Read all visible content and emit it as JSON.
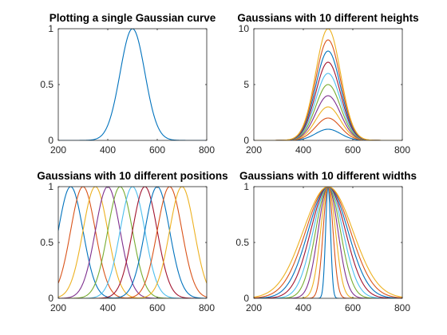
{
  "series_colors": [
    "#0072BD",
    "#D95319",
    "#EDB120",
    "#7E2F8E",
    "#77AC30",
    "#4DBEEE",
    "#A2142F",
    "#0072BD",
    "#D95319",
    "#EDB120"
  ],
  "chart_data": [
    {
      "type": "line",
      "title": "Plotting a single Gaussian curve",
      "xlim": [
        200,
        800
      ],
      "ylim": [
        0,
        1
      ],
      "xticks": [
        200,
        400,
        600,
        800
      ],
      "xtick_labels": [
        "200",
        "400",
        "600",
        "800"
      ],
      "yticks": [
        0,
        0.5,
        1
      ],
      "ytick_labels": [
        "0",
        "0.5",
        "1"
      ],
      "grid": false,
      "series": [
        {
          "center": 500,
          "sigma": 50,
          "height": 1
        }
      ]
    },
    {
      "type": "line",
      "title": "Gaussians with 10 different heights",
      "xlim": [
        200,
        800
      ],
      "ylim": [
        0,
        10
      ],
      "xticks": [
        200,
        400,
        600,
        800
      ],
      "xtick_labels": [
        "200",
        "400",
        "600",
        "800"
      ],
      "yticks": [
        0,
        5,
        10
      ],
      "ytick_labels": [
        "0",
        "5",
        "10"
      ],
      "grid": false,
      "series": [
        {
          "center": 500,
          "sigma": 50,
          "height": 1
        },
        {
          "center": 500,
          "sigma": 50,
          "height": 2
        },
        {
          "center": 500,
          "sigma": 50,
          "height": 3
        },
        {
          "center": 500,
          "sigma": 50,
          "height": 4
        },
        {
          "center": 500,
          "sigma": 50,
          "height": 5
        },
        {
          "center": 500,
          "sigma": 50,
          "height": 6
        },
        {
          "center": 500,
          "sigma": 50,
          "height": 7
        },
        {
          "center": 500,
          "sigma": 50,
          "height": 8
        },
        {
          "center": 500,
          "sigma": 50,
          "height": 9
        },
        {
          "center": 500,
          "sigma": 50,
          "height": 10
        }
      ]
    },
    {
      "type": "line",
      "title": "Gaussians with 10 different positions",
      "xlim": [
        200,
        800
      ],
      "ylim": [
        0,
        1
      ],
      "xticks": [
        200,
        400,
        600,
        800
      ],
      "xtick_labels": [
        "200",
        "400",
        "600",
        "800"
      ],
      "yticks": [
        0,
        0.5,
        1
      ],
      "ytick_labels": [
        "0",
        "0.5",
        "1"
      ],
      "grid": false,
      "series": [
        {
          "center": 250,
          "sigma": 50,
          "height": 1
        },
        {
          "center": 300,
          "sigma": 50,
          "height": 1
        },
        {
          "center": 350,
          "sigma": 50,
          "height": 1
        },
        {
          "center": 400,
          "sigma": 50,
          "height": 1
        },
        {
          "center": 450,
          "sigma": 50,
          "height": 1
        },
        {
          "center": 500,
          "sigma": 50,
          "height": 1
        },
        {
          "center": 550,
          "sigma": 50,
          "height": 1
        },
        {
          "center": 600,
          "sigma": 50,
          "height": 1
        },
        {
          "center": 650,
          "sigma": 50,
          "height": 1
        },
        {
          "center": 700,
          "sigma": 50,
          "height": 1
        }
      ]
    },
    {
      "type": "line",
      "title": "Gaussians with 10 different widths",
      "xlim": [
        200,
        800
      ],
      "ylim": [
        0,
        1
      ],
      "xticks": [
        200,
        400,
        600,
        800
      ],
      "xtick_labels": [
        "200",
        "400",
        "600",
        "800"
      ],
      "yticks": [
        0,
        0.5,
        1
      ],
      "ytick_labels": [
        "0",
        "0.5",
        "1"
      ],
      "grid": false,
      "series": [
        {
          "center": 500,
          "sigma": 10,
          "height": 1
        },
        {
          "center": 500,
          "sigma": 20,
          "height": 1
        },
        {
          "center": 500,
          "sigma": 30,
          "height": 1
        },
        {
          "center": 500,
          "sigma": 40,
          "height": 1
        },
        {
          "center": 500,
          "sigma": 50,
          "height": 1
        },
        {
          "center": 500,
          "sigma": 60,
          "height": 1
        },
        {
          "center": 500,
          "sigma": 70,
          "height": 1
        },
        {
          "center": 500,
          "sigma": 80,
          "height": 1
        },
        {
          "center": 500,
          "sigma": 90,
          "height": 1
        },
        {
          "center": 500,
          "sigma": 100,
          "height": 1
        }
      ]
    }
  ]
}
